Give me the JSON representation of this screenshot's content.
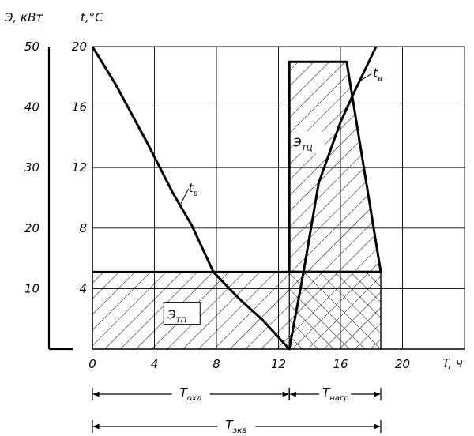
{
  "chart_data": {
    "type": "line",
    "xlabel": "T, ч",
    "ylabel_left": "Э, кВт",
    "ylabel_right": "t,°C",
    "x_ticks": [
      "0",
      "4",
      "8",
      "12",
      "16",
      "20"
    ],
    "xlim": [
      0,
      24
    ],
    "t_ticks": [
      "4",
      "8",
      "12",
      "16",
      "20"
    ],
    "tlim": [
      0,
      20
    ],
    "e_ticks": [
      "10",
      "20",
      "30",
      "40",
      "50"
    ],
    "elim": [
      0,
      50
    ],
    "grid": true,
    "series": [
      {
        "name": "t_в",
        "axis": "t",
        "points": [
          [
            0,
            20
          ],
          [
            1.5,
            17.5
          ],
          [
            3.5,
            13.7
          ],
          [
            5.2,
            10.3
          ],
          [
            6.4,
            8.2
          ],
          [
            7.8,
            5.1
          ],
          [
            9.5,
            3.3
          ],
          [
            11.0,
            1.9
          ],
          [
            12.7,
            0
          ],
          [
            13.6,
            5.0
          ],
          [
            14.6,
            11.0
          ],
          [
            16.0,
            15.0
          ],
          [
            16.8,
            16.8
          ],
          [
            18.3,
            20
          ]
        ]
      },
      {
        "name": "Э_ТЦ",
        "axis": "t",
        "points": [
          [
            12.7,
            19
          ],
          [
            16.4,
            19
          ],
          [
            18.6,
            5.1
          ],
          [
            12.7,
            5.1
          ]
        ]
      },
      {
        "name": "Э_ТП",
        "axis": "t",
        "points": [
          [
            0,
            0
          ],
          [
            18.6,
            0
          ],
          [
            18.6,
            5.1
          ],
          [
            0,
            5.1
          ]
        ]
      }
    ],
    "annotations": {
      "curve_label_main": "t",
      "curve_label_main_sub": "в",
      "curve_label_right": "t",
      "curve_label_right_sub": "в",
      "area_upper": "Э",
      "area_upper_sub": "ТЦ",
      "area_lower": "Э",
      "area_lower_sub": "ТП"
    },
    "intervals": [
      {
        "label": "T",
        "sub": "охл",
        "from": 0,
        "to": 12.7
      },
      {
        "label": "T",
        "sub": "нагр",
        "from": 12.7,
        "to": 18.6
      },
      {
        "label": "T",
        "sub": "экв",
        "from": 0,
        "to": 18.6
      }
    ]
  }
}
